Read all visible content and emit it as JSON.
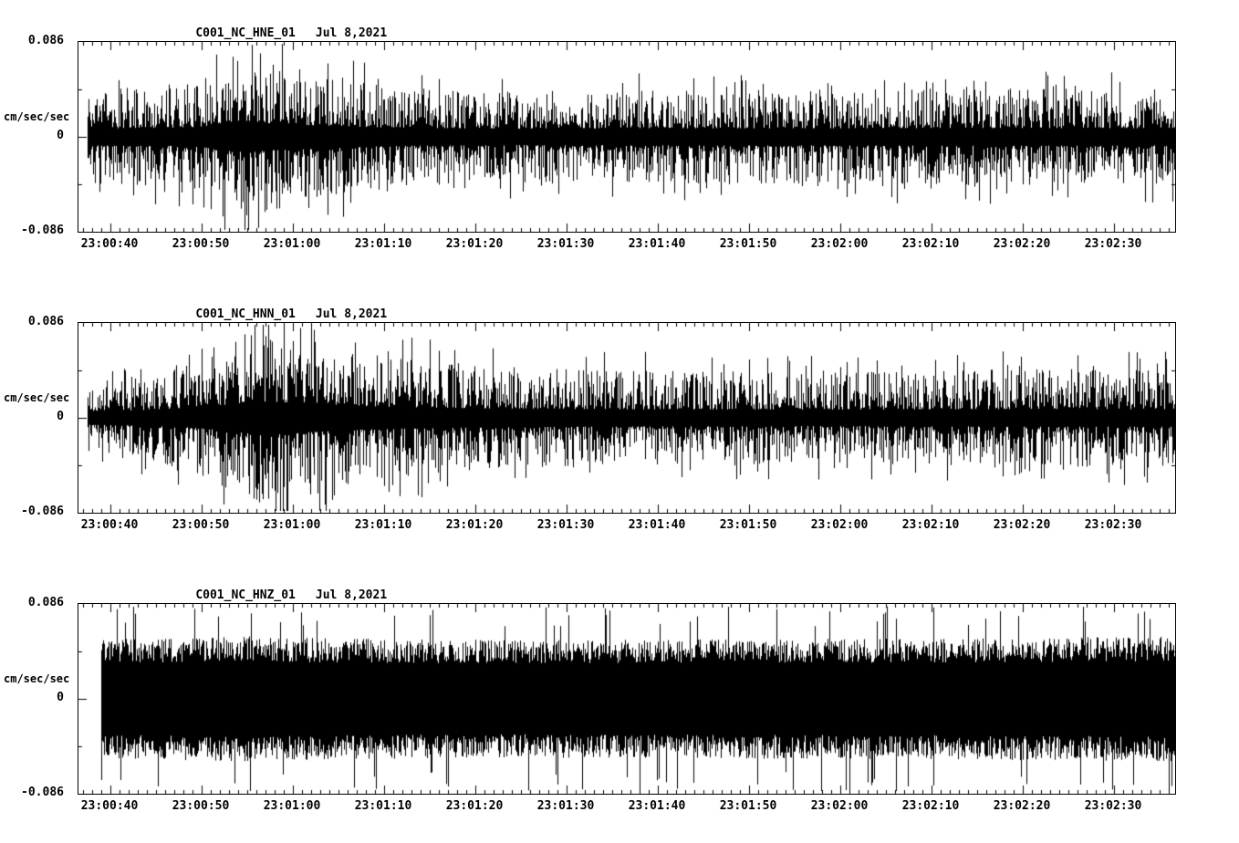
{
  "page": {
    "background": "#ffffff",
    "foreground": "#000000",
    "description_units": "cm/sec/sec"
  },
  "chart_data": [
    {
      "type": "line",
      "kind": "seismogram-trace",
      "title": "C001_NC_HNE_01",
      "date": "Jul 8,2021",
      "ylabel": "cm/sec/sec",
      "ylim": [
        -0.086,
        0.086
      ],
      "y_tick_labels": [
        "0.086",
        "0",
        "-0.086"
      ],
      "x_tick_labels": [
        "23:00:40",
        "23:00:50",
        "23:01:00",
        "23:01:10",
        "23:01:20",
        "23:01:30",
        "23:01:40",
        "23:01:50",
        "23:02:00",
        "23:02:10",
        "23:02:20",
        "23:02:30"
      ],
      "x_tick_interval_seconds": 10,
      "grid": false,
      "legend": false,
      "line_color": "#000000",
      "texture": "spiky",
      "start_fraction": 0.008,
      "seed": 11,
      "envelope": [
        [
          0,
          0.5
        ],
        [
          0.08,
          0.52
        ],
        [
          0.11,
          0.58
        ],
        [
          0.14,
          0.85
        ],
        [
          0.18,
          0.78
        ],
        [
          0.23,
          0.62
        ],
        [
          0.3,
          0.52
        ],
        [
          0.4,
          0.48
        ],
        [
          0.55,
          0.5
        ],
        [
          0.7,
          0.5
        ],
        [
          0.85,
          0.52
        ],
        [
          1,
          0.5
        ]
      ]
    },
    {
      "type": "line",
      "kind": "seismogram-trace",
      "title": "C001_NC_HNN_01",
      "date": "Jul 8,2021",
      "ylabel": "cm/sec/sec",
      "ylim": [
        -0.086,
        0.086
      ],
      "y_tick_labels": [
        "0.086",
        "0",
        "-0.086"
      ],
      "x_tick_labels": [
        "23:00:40",
        "23:00:50",
        "23:01:00",
        "23:01:10",
        "23:01:20",
        "23:01:30",
        "23:01:40",
        "23:01:50",
        "23:02:00",
        "23:02:10",
        "23:02:20",
        "23:02:30"
      ],
      "x_tick_interval_seconds": 10,
      "grid": false,
      "legend": false,
      "line_color": "#000000",
      "texture": "spiky",
      "start_fraction": 0.008,
      "seed": 22,
      "envelope": [
        [
          0,
          0.4
        ],
        [
          0.06,
          0.45
        ],
        [
          0.1,
          0.55
        ],
        [
          0.13,
          0.72
        ],
        [
          0.16,
          0.95
        ],
        [
          0.2,
          0.88
        ],
        [
          0.25,
          0.7
        ],
        [
          0.31,
          0.6
        ],
        [
          0.38,
          0.55
        ],
        [
          0.5,
          0.5
        ],
        [
          0.7,
          0.48
        ],
        [
          0.88,
          0.52
        ],
        [
          1,
          0.5
        ]
      ]
    },
    {
      "type": "line",
      "kind": "seismogram-trace",
      "title": "C001_NC_HNZ_01",
      "date": "Jul 8,2021",
      "ylabel": "cm/sec/sec",
      "ylim": [
        -0.086,
        0.086
      ],
      "y_tick_labels": [
        "0.086",
        "0",
        "-0.086"
      ],
      "x_tick_labels": [
        "23:00:40",
        "23:00:50",
        "23:01:00",
        "23:01:10",
        "23:01:20",
        "23:01:30",
        "23:01:40",
        "23:01:50",
        "23:02:00",
        "23:02:10",
        "23:02:20",
        "23:02:30"
      ],
      "x_tick_interval_seconds": 10,
      "grid": false,
      "legend": false,
      "line_color": "#000000",
      "texture": "dense",
      "start_fraction": 0.021,
      "seed": 33,
      "envelope": [
        [
          0,
          0.62
        ],
        [
          0.15,
          0.66
        ],
        [
          0.22,
          0.64
        ],
        [
          0.4,
          0.62
        ],
        [
          0.6,
          0.63
        ],
        [
          0.8,
          0.64
        ],
        [
          1,
          0.66
        ]
      ]
    }
  ]
}
